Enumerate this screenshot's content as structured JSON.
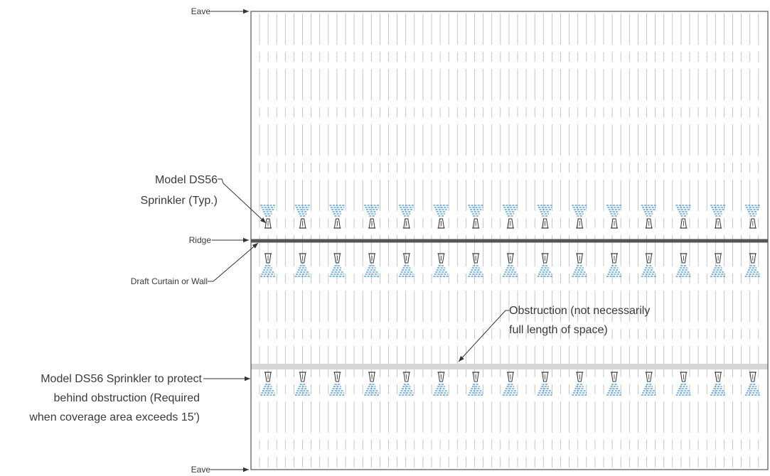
{
  "labels": {
    "eave_top": "Eave",
    "eave_bottom": "Eave",
    "ridge": "Ridge",
    "draft_curtain": "Draft Curtain or Wall",
    "sprinkler_typ_line1": "Model DS56",
    "sprinkler_typ_line2": "Sprinkler (Typ.)",
    "obstruction_line1": "Obstruction (not necessarily",
    "obstruction_line2": "full length of space)",
    "behind_obstruction_line1": "Model DS56 Sprinkler to protect",
    "behind_obstruction_line2": "behind obstruction (Required",
    "behind_obstruction_line3": "when coverage area exceeds 15')"
  },
  "layout": {
    "sprinkler_count_per_row": 15
  },
  "colors": {
    "outline": "#555555",
    "ridge_line": "#555555",
    "joist": "#b8b8b8",
    "obstruction": "#d6d6d6",
    "spray": "#3a8fd4",
    "sprinkler": "#333333",
    "leader": "#333333"
  }
}
